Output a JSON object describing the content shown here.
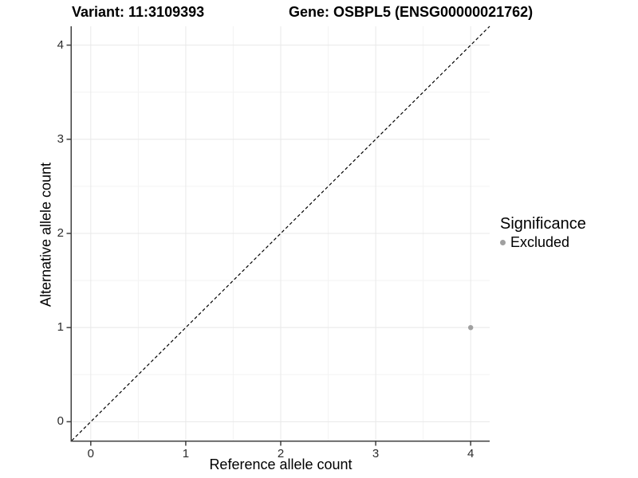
{
  "titles": {
    "variant": "Variant: 11:3109393",
    "gene": "Gene: OSBPL5 (ENSG00000021762)"
  },
  "chart_data": {
    "type": "scatter",
    "title_left": "Variant: 11:3109393",
    "title_right": "Gene: OSBPL5 (ENSG00000021762)",
    "xlabel": "Reference allele count",
    "ylabel": "Alternative allele count",
    "xlim": [
      -0.2,
      4.2
    ],
    "ylim": [
      -0.2,
      4.2
    ],
    "x_ticks": [
      0,
      1,
      2,
      3,
      4
    ],
    "y_ticks": [
      0,
      1,
      2,
      3,
      4
    ],
    "x_minor_ticks": [
      0.5,
      1.5,
      2.5,
      3.5
    ],
    "y_minor_ticks": [
      0.5,
      1.5,
      2.5,
      3.5
    ],
    "grid": "on",
    "identity_line": {
      "style": "dashed",
      "color": "#000000",
      "from": [
        -0.2,
        -0.2
      ],
      "to": [
        4.2,
        4.2
      ]
    },
    "series": [
      {
        "name": "Excluded",
        "color": "#a0a0a0",
        "points": [
          {
            "x": 4,
            "y": 1
          }
        ]
      }
    ],
    "legend": {
      "title": "Significance",
      "position": "right",
      "items": [
        {
          "label": "Excluded",
          "color": "#a0a0a0"
        }
      ]
    }
  },
  "colors": {
    "background": "#ffffff",
    "grid_major": "#e8e8e8",
    "grid_minor": "#f3f3f3",
    "axis_line": "#404040",
    "tick_text": "#2b2b2b",
    "point": "#a0a0a0",
    "dashed_line": "#000000"
  }
}
